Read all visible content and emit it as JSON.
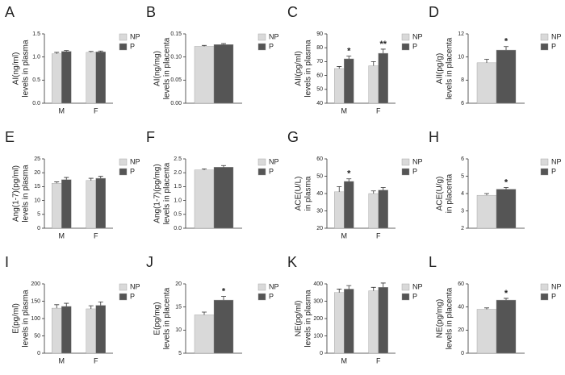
{
  "chart_data": [
    {
      "type": "bar",
      "panel": "A",
      "ylabel": [
        "AI(ng/ml)",
        "levels in plasma"
      ],
      "categories": [
        "M",
        "F"
      ],
      "series": [
        {
          "name": "NP",
          "color": "#d9d9d9",
          "values": [
            1.07,
            1.1
          ],
          "errors": [
            0.03,
            0.02
          ]
        },
        {
          "name": "P",
          "color": "#555555",
          "values": [
            1.12,
            1.11
          ],
          "errors": [
            0.02,
            0.02
          ]
        }
      ],
      "ylim": [
        0,
        1.5
      ],
      "yticks": [
        {
          "value": 0,
          "label": "0.0"
        },
        0.5,
        {
          "value": 1,
          "label": "1.0"
        },
        1.5
      ]
    },
    {
      "type": "bar",
      "panel": "B",
      "ylabel": [
        "AI(ng/mg)",
        "levels in placenta"
      ],
      "categories": [
        null
      ],
      "series": [
        {
          "name": "NP",
          "color": "#d9d9d9",
          "values": [
            0.123
          ],
          "errors": [
            0.002
          ]
        },
        {
          "name": "P",
          "color": "#555555",
          "values": [
            0.127
          ],
          "errors": [
            0.002
          ]
        }
      ],
      "ylim": [
        0,
        0.15
      ],
      "yticks": [
        {
          "value": 0,
          "label": "0.00"
        },
        0.05,
        {
          "value": 0.1,
          "label": "0.10"
        },
        0.15
      ]
    },
    {
      "type": "bar",
      "panel": "C",
      "ylabel": [
        "AII(pg/ml)",
        "levels in plasma"
      ],
      "categories": [
        "M",
        "F"
      ],
      "series": [
        {
          "name": "NP",
          "color": "#d9d9d9",
          "values": [
            65,
            67
          ],
          "errors": [
            1.5,
            3
          ],
          "significance": [
            null,
            null
          ]
        },
        {
          "name": "P",
          "color": "#555555",
          "values": [
            72,
            76
          ],
          "errors": [
            2,
            3
          ],
          "significance": [
            "*",
            "**"
          ]
        }
      ],
      "ylim": [
        40,
        90
      ],
      "yticks": [
        40,
        50,
        60,
        70,
        80,
        90
      ]
    },
    {
      "type": "bar",
      "panel": "D",
      "ylabel": [
        "AII(pg/g)",
        "levels in placenta"
      ],
      "categories": [
        null
      ],
      "series": [
        {
          "name": "NP",
          "color": "#d9d9d9",
          "values": [
            9.5
          ],
          "errors": [
            0.3
          ],
          "significance": [
            null
          ]
        },
        {
          "name": "P",
          "color": "#555555",
          "values": [
            10.6
          ],
          "errors": [
            0.3
          ],
          "significance": [
            "*"
          ]
        }
      ],
      "ylim": [
        6,
        12
      ],
      "yticks": [
        6,
        8,
        10,
        12
      ]
    },
    {
      "type": "bar",
      "panel": "E",
      "ylabel": [
        "Ang(1-7)(pg/ml)",
        "levels in plasma"
      ],
      "categories": [
        "M",
        "F"
      ],
      "series": [
        {
          "name": "NP",
          "color": "#d9d9d9",
          "values": [
            16.2,
            17.2
          ],
          "errors": [
            0.5,
            0.8
          ]
        },
        {
          "name": "P",
          "color": "#555555",
          "values": [
            17.5,
            18.0
          ],
          "errors": [
            0.8,
            0.7
          ]
        }
      ],
      "ylim": [
        0,
        25
      ],
      "yticks": [
        0,
        5,
        10,
        15,
        20,
        25
      ]
    },
    {
      "type": "bar",
      "panel": "F",
      "ylabel": [
        "Ang(1-7)(pg/mg)",
        "levels in placenta"
      ],
      "categories": [
        null
      ],
      "series": [
        {
          "name": "NP",
          "color": "#d9d9d9",
          "values": [
            2.1
          ],
          "errors": [
            0.04
          ]
        },
        {
          "name": "P",
          "color": "#555555",
          "values": [
            2.2
          ],
          "errors": [
            0.06
          ]
        }
      ],
      "ylim": [
        0,
        2.5
      ],
      "yticks": [
        {
          "value": 0,
          "label": "0.0"
        },
        0.5,
        {
          "value": 1,
          "label": "1.0"
        },
        1.5,
        {
          "value": 2,
          "label": "2.0"
        },
        2.5
      ]
    },
    {
      "type": "bar",
      "panel": "G",
      "ylabel": [
        "ACE(U/L)",
        "in plasma"
      ],
      "categories": [
        "M",
        "F"
      ],
      "series": [
        {
          "name": "NP",
          "color": "#d9d9d9",
          "values": [
            41,
            40
          ],
          "errors": [
            3,
            1.5
          ],
          "significance": [
            null,
            null
          ]
        },
        {
          "name": "P",
          "color": "#555555",
          "values": [
            47,
            42
          ],
          "errors": [
            1.5,
            1.5
          ],
          "significance": [
            "*",
            null
          ]
        }
      ],
      "ylim": [
        20,
        60
      ],
      "yticks": [
        20,
        30,
        40,
        50,
        60
      ]
    },
    {
      "type": "bar",
      "panel": "H",
      "ylabel": [
        "ACE(U/g)",
        "in placenta"
      ],
      "categories": [
        null
      ],
      "series": [
        {
          "name": "NP",
          "color": "#d9d9d9",
          "values": [
            3.9
          ],
          "errors": [
            0.1
          ],
          "significance": [
            null
          ]
        },
        {
          "name": "P",
          "color": "#555555",
          "values": [
            4.25
          ],
          "errors": [
            0.1
          ],
          "significance": [
            "*"
          ]
        }
      ],
      "ylim": [
        2,
        6
      ],
      "yticks": [
        2,
        3,
        4,
        5,
        6
      ]
    },
    {
      "type": "bar",
      "panel": "I",
      "ylabel": [
        "E(pg/ml)",
        "levels in plasma"
      ],
      "categories": [
        "M",
        "F"
      ],
      "series": [
        {
          "name": "NP",
          "color": "#d9d9d9",
          "values": [
            130,
            128
          ],
          "errors": [
            10,
            9
          ]
        },
        {
          "name": "P",
          "color": "#555555",
          "values": [
            135,
            138
          ],
          "errors": [
            9,
            10
          ]
        }
      ],
      "ylim": [
        0,
        200
      ],
      "yticks": [
        0,
        50,
        100,
        150,
        200
      ]
    },
    {
      "type": "bar",
      "panel": "J",
      "ylabel": [
        "E(pg/mg)",
        "levels in placenta"
      ],
      "categories": [
        null
      ],
      "series": [
        {
          "name": "NP",
          "color": "#d9d9d9",
          "values": [
            13.3
          ],
          "errors": [
            0.6
          ],
          "significance": [
            null
          ]
        },
        {
          "name": "P",
          "color": "#555555",
          "values": [
            16.5
          ],
          "errors": [
            0.8
          ],
          "significance": [
            "*"
          ]
        }
      ],
      "ylim": [
        5,
        20
      ],
      "yticks": [
        5,
        10,
        15,
        20
      ]
    },
    {
      "type": "bar",
      "panel": "K",
      "ylabel": [
        "NE(pg/ml)",
        "levels in plasma"
      ],
      "categories": [
        "M",
        "F"
      ],
      "series": [
        {
          "name": "NP",
          "color": "#d9d9d9",
          "values": [
            350,
            360
          ],
          "errors": [
            20,
            20
          ]
        },
        {
          "name": "P",
          "color": "#555555",
          "values": [
            370,
            380
          ],
          "errors": [
            20,
            25
          ]
        }
      ],
      "ylim": [
        0,
        400
      ],
      "yticks": [
        0,
        100,
        200,
        300,
        400
      ]
    },
    {
      "type": "bar",
      "panel": "L",
      "ylabel": [
        "NE(pg/mg)",
        "levels in placenta"
      ],
      "categories": [
        null
      ],
      "series": [
        {
          "name": "NP",
          "color": "#d9d9d9",
          "values": [
            38
          ],
          "errors": [
            1.2
          ],
          "significance": [
            null
          ]
        },
        {
          "name": "P",
          "color": "#555555",
          "values": [
            46
          ],
          "errors": [
            1.5
          ],
          "significance": [
            "*"
          ]
        }
      ],
      "ylim": [
        0,
        60
      ],
      "yticks": [
        0,
        20,
        40,
        60
      ]
    }
  ]
}
